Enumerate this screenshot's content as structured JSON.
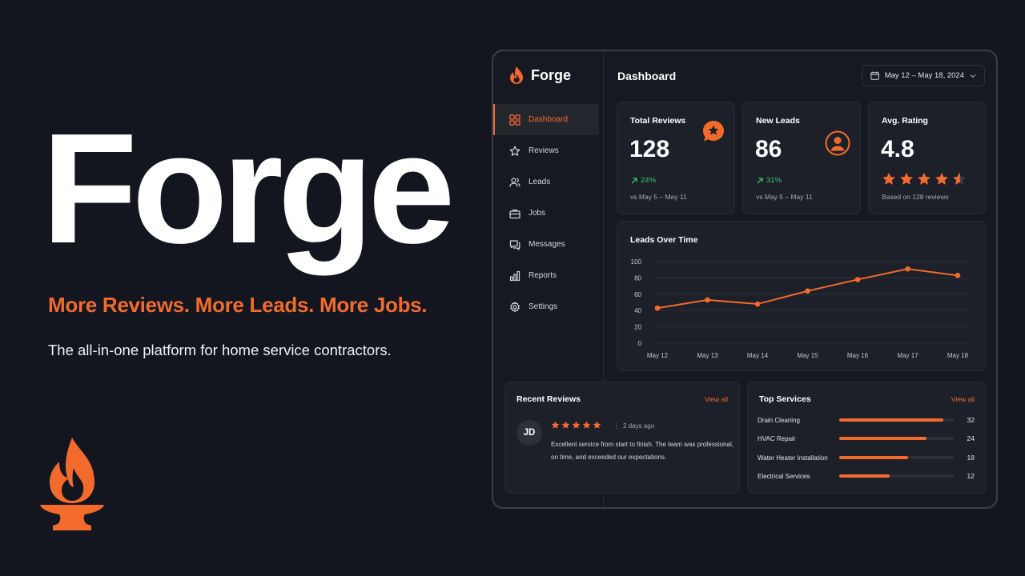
{
  "hero": {
    "title": "Forge",
    "tagline": "More Reviews. More Leads. More Jobs.",
    "subtitle": "The all-in-one platform for home service contractors."
  },
  "brand": {
    "name": "Forge",
    "accent": "#f26b2c"
  },
  "sidebar": {
    "items": [
      {
        "label": "Dashboard",
        "icon": "grid-icon",
        "active": true
      },
      {
        "label": "Reviews",
        "icon": "star-icon"
      },
      {
        "label": "Leads",
        "icon": "users-icon"
      },
      {
        "label": "Jobs",
        "icon": "briefcase-icon"
      },
      {
        "label": "Messages",
        "icon": "messages-icon"
      },
      {
        "label": "Reports",
        "icon": "bar-chart-icon"
      },
      {
        "label": "Settings",
        "icon": "gear-icon"
      }
    ]
  },
  "header": {
    "title": "Dashboard",
    "date_range": "May 12 – May 18, 2024"
  },
  "stats": {
    "total_reviews": {
      "label": "Total Reviews",
      "value": "128",
      "delta": "24%",
      "note": "vs May 5 – May 11"
    },
    "new_leads": {
      "label": "New Leads",
      "value": "86",
      "delta": "31%",
      "note": "vs May 5 – May 11"
    },
    "avg_rating": {
      "label": "Avg. Rating",
      "value": "4.8",
      "rating": 4.8,
      "note": "Based on 128 reviews"
    }
  },
  "chart_data": {
    "type": "line",
    "title": "Leads Over Time",
    "categories": [
      "May 12",
      "May 13",
      "May 14",
      "May 15",
      "May 16",
      "May 17",
      "May 18"
    ],
    "values": [
      43,
      53,
      48,
      64,
      78,
      91,
      83
    ],
    "ylim": [
      0,
      100
    ],
    "yticks": [
      0,
      20,
      40,
      60,
      80,
      100
    ],
    "grid": true,
    "color": "#f26b2c"
  },
  "recent_reviews": {
    "title": "Recent Reviews",
    "view_all": "View all",
    "review": {
      "initials": "JD",
      "rating": 5,
      "time": "2 days ago",
      "text": "Excellent service from start to finish. The team was professional, on time, and exceeded our expectations."
    }
  },
  "top_services": {
    "title": "Top Services",
    "view_all": "View all",
    "items": [
      {
        "name": "Drain Cleaning",
        "value": "32",
        "share": 0.91
      },
      {
        "name": "HVAC Repair",
        "value": "24",
        "share": 0.76
      },
      {
        "name": "Water Heater Installation",
        "value": "18",
        "share": 0.6
      },
      {
        "name": "Electrical Services",
        "value": "12",
        "share": 0.44
      }
    ]
  }
}
